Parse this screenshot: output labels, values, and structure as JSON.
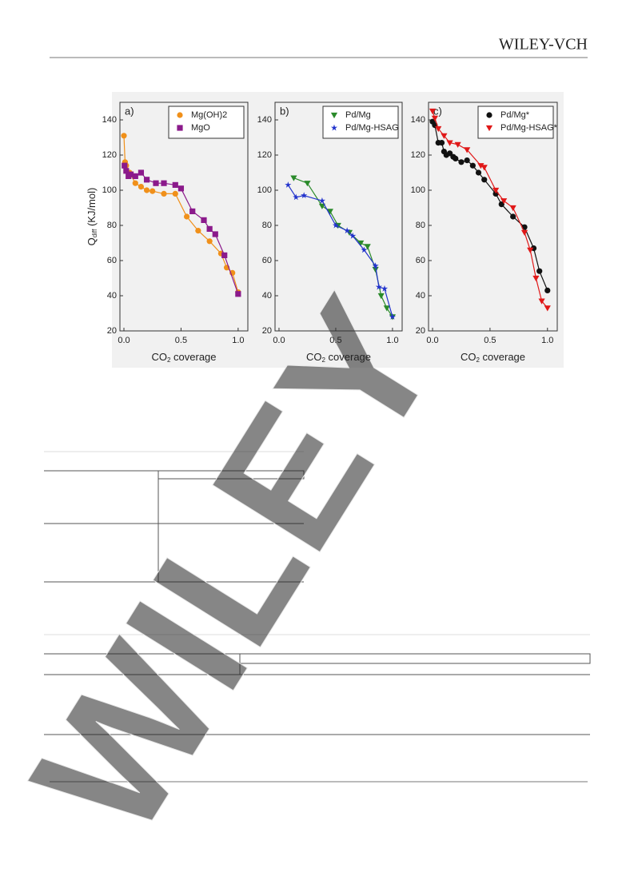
{
  "header": {
    "publisher": "WILEY-VCH"
  },
  "watermark": "WILEY",
  "chart_data": [
    {
      "type": "scatter",
      "title": "a)",
      "x_label": [
        "CO",
        "2",
        " coverage"
      ],
      "y_label": [
        "Q",
        "diff",
        " (KJ/mol)"
      ],
      "xlim": [
        -0.035,
        1.085
      ],
      "ylim": [
        20,
        150
      ],
      "xticks": [
        {
          "value": 0,
          "label": "0.0"
        },
        0.5,
        {
          "value": 1,
          "label": "1.0"
        }
      ],
      "yticks": [
        20,
        40,
        60,
        80,
        100,
        120,
        140
      ],
      "series": [
        {
          "name": "Mg(OH)2",
          "color": "#f0901a",
          "marker": "circle",
          "x": [
            0,
            0.01,
            0.02,
            0.05,
            0.1,
            0.15,
            0.2,
            0.25,
            0.35,
            0.45,
            0.55,
            0.65,
            0.75,
            0.85,
            0.9,
            0.95,
            1.0
          ],
          "values": [
            131,
            116,
            114,
            110,
            104,
            102,
            100,
            99.5,
            98,
            98,
            85,
            77,
            71,
            64,
            56,
            53,
            42
          ]
        },
        {
          "name": "MgO",
          "color": "#8b1a8b",
          "marker": "square",
          "x": [
            0.005,
            0.02,
            0.04,
            0.06,
            0.1,
            0.15,
            0.2,
            0.28,
            0.35,
            0.45,
            0.5,
            0.6,
            0.7,
            0.75,
            0.8,
            0.88,
            1.0
          ],
          "values": [
            114,
            111,
            108,
            109,
            108,
            110,
            106,
            104,
            104,
            103,
            101,
            88,
            83,
            78,
            75,
            63,
            41
          ]
        }
      ]
    },
    {
      "type": "scatter",
      "title": "b)",
      "x_label": [
        "CO",
        "2",
        " coverage"
      ],
      "xlim": [
        -0.035,
        1.085
      ],
      "ylim": [
        20,
        150
      ],
      "xticks": [
        {
          "value": 0,
          "label": "0.0"
        },
        0.5,
        {
          "value": 1,
          "label": "1.0"
        }
      ],
      "yticks": [
        20,
        40,
        60,
        80,
        100,
        120,
        140
      ],
      "series": [
        {
          "name": "Pd/Mg",
          "color": "#2a8a2a",
          "marker": "tri",
          "x": [
            0.13,
            0.25,
            0.38,
            0.45,
            0.52,
            0.62,
            0.72,
            0.78,
            0.85,
            0.9,
            0.95,
            1.0
          ],
          "values": [
            107,
            104,
            91,
            88,
            80,
            76,
            70,
            68,
            55,
            40,
            33,
            28
          ]
        },
        {
          "name": "Pd/Mg-HSAG",
          "color": "#2233cc",
          "marker": "star",
          "x": [
            0.08,
            0.15,
            0.22,
            0.38,
            0.5,
            0.6,
            0.65,
            0.75,
            0.85,
            0.88,
            0.93,
            1.0
          ],
          "values": [
            103,
            96,
            97,
            94,
            80,
            77,
            74,
            66,
            57,
            45,
            44,
            28
          ]
        }
      ]
    },
    {
      "type": "scatter",
      "title": "c)",
      "x_label": [
        "CO",
        "2",
        " coverage"
      ],
      "xlim": [
        -0.035,
        1.085
      ],
      "ylim": [
        20,
        150
      ],
      "xticks": [
        {
          "value": 0,
          "label": "0.0"
        },
        0.5,
        {
          "value": 1,
          "label": "1.0"
        }
      ],
      "yticks": [
        20,
        40,
        60,
        80,
        100,
        120,
        140
      ],
      "series": [
        {
          "name": "Pd/Mg*",
          "color": "#111111",
          "marker": "circle",
          "x": [
            0,
            0.02,
            0.05,
            0.08,
            0.1,
            0.12,
            0.15,
            0.18,
            0.2,
            0.25,
            0.3,
            0.35,
            0.4,
            0.45,
            0.55,
            0.6,
            0.7,
            0.8,
            0.88,
            0.93,
            1.0
          ],
          "values": [
            139,
            137,
            127,
            127,
            122,
            120,
            121,
            119,
            118,
            116,
            117,
            114,
            110,
            106,
            98,
            92,
            85,
            79,
            67,
            54,
            43
          ]
        },
        {
          "name": "Pd/Mg-HSAG*",
          "color": "#e01818",
          "marker": "tri",
          "x": [
            0,
            0.02,
            0.05,
            0.1,
            0.15,
            0.22,
            0.3,
            0.42,
            0.45,
            0.55,
            0.62,
            0.7,
            0.8,
            0.85,
            0.9,
            0.95,
            1.0
          ],
          "values": [
            145,
            141,
            135,
            131,
            127,
            126,
            123,
            114,
            113,
            100,
            94,
            90,
            76,
            66,
            50,
            37,
            33
          ]
        }
      ]
    }
  ]
}
